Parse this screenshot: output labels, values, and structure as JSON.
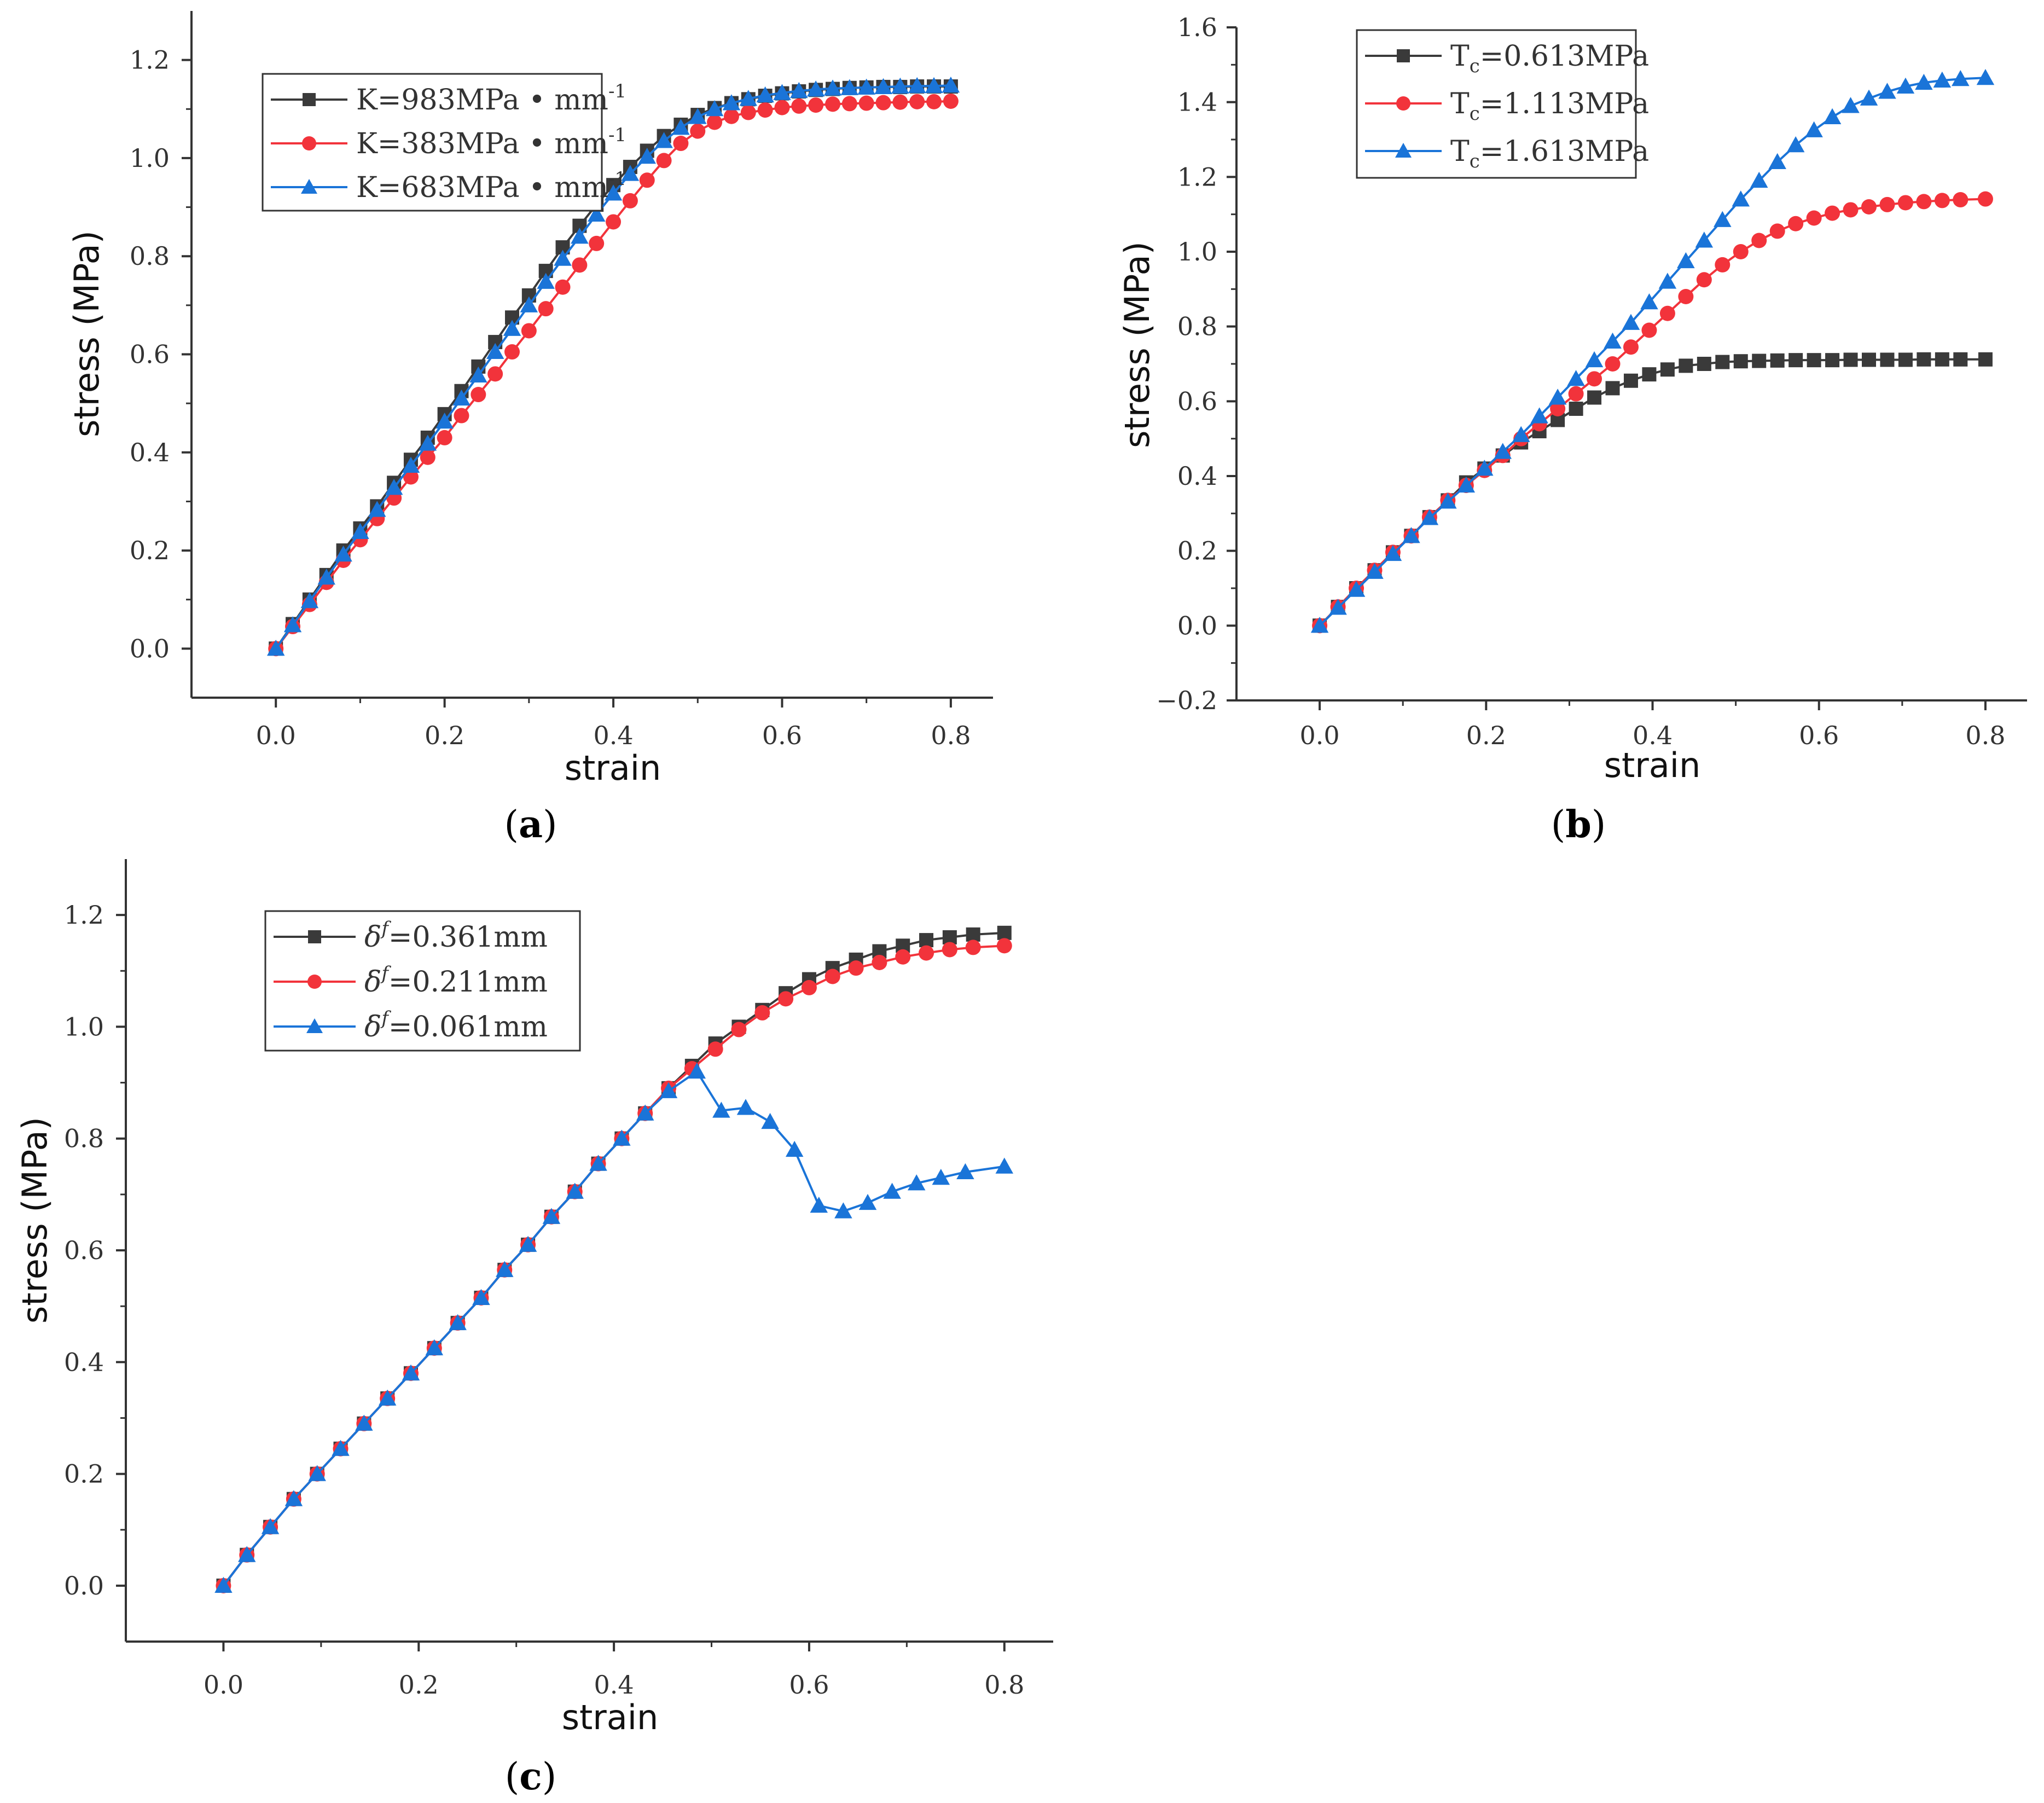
{
  "colors": {
    "black_series": "#3a3a3a",
    "red_series": "#f2333b",
    "blue_series": "#1a74d8",
    "axis": "#333333"
  },
  "chart_data": [
    {
      "panel": "a",
      "caption": {
        "open": "(",
        "letter": "a",
        "close": ")"
      },
      "type": "line",
      "xlabel": "strain",
      "ylabel": "stress (MPa)",
      "xlim": [
        -0.1,
        0.85
      ],
      "ylim": [
        -0.1,
        1.3
      ],
      "xticks": [
        0.0,
        0.2,
        0.4,
        0.6,
        0.8
      ],
      "xtick_labels": [
        "0.0",
        "0.2",
        "0.4",
        "0.6",
        "0.8"
      ],
      "yticks": [
        0.0,
        0.2,
        0.4,
        0.6,
        0.8,
        1.0,
        1.2
      ],
      "ytick_labels": [
        "0.0",
        "0.2",
        "0.4",
        "0.6",
        "0.8",
        "1.0",
        "1.2"
      ],
      "legend_position": "top-center",
      "x": [
        0.0,
        0.02,
        0.04,
        0.06,
        0.08,
        0.1,
        0.12,
        0.14,
        0.16,
        0.18,
        0.2,
        0.22,
        0.24,
        0.26,
        0.28,
        0.3,
        0.32,
        0.34,
        0.36,
        0.38,
        0.4,
        0.42,
        0.44,
        0.46,
        0.48,
        0.5,
        0.52,
        0.54,
        0.56,
        0.58,
        0.6,
        0.62,
        0.64,
        0.66,
        0.68,
        0.7,
        0.72,
        0.74,
        0.76,
        0.78,
        0.8
      ],
      "series": [
        {
          "name": "K=983MPa • mm⁻¹",
          "label_main": "K=983MPa",
          "label_unit": " • mm",
          "label_sup": "-1",
          "color": "#3a3a3a",
          "marker": "square",
          "values": [
            0.0,
            0.05,
            0.1,
            0.15,
            0.2,
            0.245,
            0.29,
            0.338,
            0.385,
            0.43,
            0.478,
            0.525,
            0.575,
            0.625,
            0.675,
            0.72,
            0.77,
            0.818,
            0.862,
            0.905,
            0.945,
            0.982,
            1.015,
            1.045,
            1.068,
            1.088,
            1.102,
            1.112,
            1.12,
            1.127,
            1.132,
            1.136,
            1.139,
            1.141,
            1.143,
            1.144,
            1.145,
            1.145,
            1.146,
            1.146,
            1.146
          ]
        },
        {
          "name": "K=383MPa • mm⁻¹",
          "label_main": "K=383MPa",
          "label_unit": " • mm",
          "label_sup": "-1",
          "color": "#f2333b",
          "marker": "circle",
          "values": [
            0.0,
            0.045,
            0.09,
            0.135,
            0.18,
            0.222,
            0.265,
            0.307,
            0.35,
            0.39,
            0.43,
            0.475,
            0.518,
            0.56,
            0.605,
            0.648,
            0.693,
            0.737,
            0.782,
            0.826,
            0.87,
            0.913,
            0.955,
            0.995,
            1.03,
            1.055,
            1.073,
            1.085,
            1.093,
            1.098,
            1.103,
            1.106,
            1.108,
            1.11,
            1.111,
            1.112,
            1.113,
            1.114,
            1.115,
            1.115,
            1.116
          ]
        },
        {
          "name": "K=683MPa • mm⁻¹",
          "label_main": "K=683MPa",
          "label_unit": " • mm",
          "label_sup": "-1",
          "color": "#1a74d8",
          "marker": "triangle",
          "values": [
            0.0,
            0.048,
            0.097,
            0.145,
            0.192,
            0.238,
            0.283,
            0.328,
            0.373,
            0.418,
            0.463,
            0.51,
            0.557,
            0.605,
            0.652,
            0.7,
            0.748,
            0.795,
            0.84,
            0.885,
            0.928,
            0.968,
            1.003,
            1.035,
            1.062,
            1.084,
            1.1,
            1.112,
            1.121,
            1.128,
            1.133,
            1.137,
            1.14,
            1.142,
            1.143,
            1.144,
            1.145,
            1.146,
            1.147,
            1.147,
            1.148
          ]
        }
      ]
    },
    {
      "panel": "b",
      "caption": {
        "open": "(",
        "letter": "b",
        "close": ")"
      },
      "type": "line",
      "xlabel": "strain",
      "ylabel": "stress (MPa)",
      "xlim": [
        -0.1,
        0.85
      ],
      "ylim": [
        -0.2,
        1.6
      ],
      "xticks": [
        0.0,
        0.2,
        0.4,
        0.6,
        0.8
      ],
      "xtick_labels": [
        "0.0",
        "0.2",
        "0.4",
        "0.6",
        "0.8"
      ],
      "yticks": [
        -0.2,
        0.0,
        0.2,
        0.4,
        0.6,
        0.8,
        1.0,
        1.2,
        1.4,
        1.6
      ],
      "ytick_labels": [
        "−0.2",
        "0.0",
        "0.2",
        "0.4",
        "0.6",
        "0.8",
        "1.0",
        "1.2",
        "1.4",
        "1.6"
      ],
      "legend_position": "top-center",
      "x": [
        0.0,
        0.022,
        0.044,
        0.066,
        0.088,
        0.11,
        0.132,
        0.154,
        0.176,
        0.198,
        0.22,
        0.242,
        0.264,
        0.286,
        0.308,
        0.33,
        0.352,
        0.374,
        0.396,
        0.418,
        0.44,
        0.462,
        0.484,
        0.506,
        0.528,
        0.55,
        0.572,
        0.594,
        0.616,
        0.638,
        0.66,
        0.682,
        0.704,
        0.726,
        0.748,
        0.77,
        0.8
      ],
      "series": [
        {
          "name": "Tc=0.613MPa",
          "label_main": "T",
          "label_sub": "c",
          "label_rest": "=0.613MPa",
          "color": "#3a3a3a",
          "marker": "square",
          "values": [
            0.0,
            0.05,
            0.1,
            0.148,
            0.196,
            0.24,
            0.29,
            0.335,
            0.383,
            0.42,
            0.455,
            0.49,
            0.52,
            0.55,
            0.58,
            0.61,
            0.635,
            0.655,
            0.672,
            0.685,
            0.695,
            0.7,
            0.705,
            0.707,
            0.708,
            0.709,
            0.71,
            0.71,
            0.71,
            0.711,
            0.711,
            0.711,
            0.711,
            0.712,
            0.712,
            0.712,
            0.712
          ]
        },
        {
          "name": "Tc=1.113MPa",
          "label_main": "T",
          "label_sub": "c",
          "label_rest": "=1.113MPa",
          "color": "#f2333b",
          "marker": "circle",
          "values": [
            0.0,
            0.05,
            0.1,
            0.148,
            0.196,
            0.24,
            0.29,
            0.335,
            0.375,
            0.415,
            0.455,
            0.5,
            0.54,
            0.58,
            0.62,
            0.66,
            0.7,
            0.745,
            0.79,
            0.835,
            0.88,
            0.925,
            0.965,
            1.0,
            1.03,
            1.055,
            1.075,
            1.09,
            1.103,
            1.112,
            1.12,
            1.126,
            1.131,
            1.134,
            1.137,
            1.139,
            1.141
          ]
        },
        {
          "name": "Tc=1.613MPa",
          "label_main": "T",
          "label_sub": "c",
          "label_rest": "=1.613MPa",
          "color": "#1a74d8",
          "marker": "triangle",
          "values": [
            0.0,
            0.048,
            0.096,
            0.144,
            0.192,
            0.24,
            0.288,
            0.332,
            0.375,
            0.42,
            0.465,
            0.51,
            0.56,
            0.61,
            0.66,
            0.71,
            0.76,
            0.81,
            0.865,
            0.92,
            0.975,
            1.03,
            1.085,
            1.14,
            1.19,
            1.24,
            1.285,
            1.325,
            1.36,
            1.39,
            1.41,
            1.428,
            1.442,
            1.452,
            1.458,
            1.462,
            1.465
          ]
        }
      ]
    },
    {
      "panel": "c",
      "caption": {
        "open": "(",
        "letter": "c",
        "close": ")"
      },
      "type": "line",
      "xlabel": "strain",
      "ylabel": "stress (MPa)",
      "xlim": [
        -0.1,
        0.85
      ],
      "ylim": [
        -0.1,
        1.3
      ],
      "xticks": [
        0.0,
        0.2,
        0.4,
        0.6,
        0.8
      ],
      "xtick_labels": [
        "0.0",
        "0.2",
        "0.4",
        "0.6",
        "0.8"
      ],
      "yticks": [
        0.0,
        0.2,
        0.4,
        0.6,
        0.8,
        1.0,
        1.2
      ],
      "ytick_labels": [
        "0.0",
        "0.2",
        "0.4",
        "0.6",
        "0.8",
        "1.0",
        "1.2"
      ],
      "legend_position": "top-left",
      "series": [
        {
          "name": "δf=0.361mm",
          "label_main": "δ",
          "label_sup": "f",
          "label_rest": "=0.361mm",
          "color": "#3a3a3a",
          "marker": "square",
          "x": [
            0.0,
            0.024,
            0.048,
            0.072,
            0.096,
            0.12,
            0.144,
            0.168,
            0.192,
            0.216,
            0.24,
            0.264,
            0.288,
            0.312,
            0.336,
            0.36,
            0.384,
            0.408,
            0.432,
            0.456,
            0.48,
            0.504,
            0.528,
            0.552,
            0.576,
            0.6,
            0.624,
            0.648,
            0.672,
            0.696,
            0.72,
            0.744,
            0.768,
            0.8
          ],
          "values": [
            0.0,
            0.055,
            0.105,
            0.155,
            0.2,
            0.245,
            0.29,
            0.335,
            0.38,
            0.425,
            0.47,
            0.515,
            0.565,
            0.61,
            0.66,
            0.705,
            0.755,
            0.8,
            0.845,
            0.89,
            0.93,
            0.97,
            1.0,
            1.03,
            1.06,
            1.085,
            1.105,
            1.12,
            1.135,
            1.145,
            1.155,
            1.16,
            1.165,
            1.168
          ]
        },
        {
          "name": "δf=0.211mm",
          "label_main": "δ",
          "label_sup": "f",
          "label_rest": "=0.211mm",
          "color": "#f2333b",
          "marker": "circle",
          "x": [
            0.0,
            0.024,
            0.048,
            0.072,
            0.096,
            0.12,
            0.144,
            0.168,
            0.192,
            0.216,
            0.24,
            0.264,
            0.288,
            0.312,
            0.336,
            0.36,
            0.384,
            0.408,
            0.432,
            0.456,
            0.48,
            0.504,
            0.528,
            0.552,
            0.576,
            0.6,
            0.624,
            0.648,
            0.672,
            0.696,
            0.72,
            0.744,
            0.768,
            0.8
          ],
          "values": [
            0.0,
            0.055,
            0.105,
            0.155,
            0.2,
            0.245,
            0.29,
            0.335,
            0.38,
            0.425,
            0.47,
            0.515,
            0.565,
            0.61,
            0.66,
            0.705,
            0.755,
            0.8,
            0.845,
            0.89,
            0.925,
            0.96,
            0.995,
            1.025,
            1.05,
            1.07,
            1.09,
            1.105,
            1.115,
            1.125,
            1.132,
            1.138,
            1.142,
            1.145
          ]
        },
        {
          "name": "δf=0.061mm",
          "label_main": "δ",
          "label_sup": "f",
          "label_rest": "=0.061mm",
          "color": "#1a74d8",
          "marker": "triangle",
          "x": [
            0.0,
            0.024,
            0.048,
            0.072,
            0.096,
            0.12,
            0.144,
            0.168,
            0.192,
            0.216,
            0.24,
            0.264,
            0.288,
            0.312,
            0.336,
            0.36,
            0.384,
            0.408,
            0.432,
            0.456,
            0.485,
            0.51,
            0.535,
            0.56,
            0.585,
            0.61,
            0.635,
            0.66,
            0.685,
            0.71,
            0.735,
            0.76,
            0.8
          ],
          "values": [
            0.0,
            0.055,
            0.105,
            0.155,
            0.2,
            0.245,
            0.29,
            0.335,
            0.38,
            0.425,
            0.47,
            0.515,
            0.565,
            0.61,
            0.66,
            0.705,
            0.755,
            0.8,
            0.845,
            0.885,
            0.92,
            0.85,
            0.855,
            0.83,
            0.78,
            0.68,
            0.67,
            0.685,
            0.705,
            0.72,
            0.73,
            0.74,
            0.75
          ]
        }
      ]
    }
  ]
}
